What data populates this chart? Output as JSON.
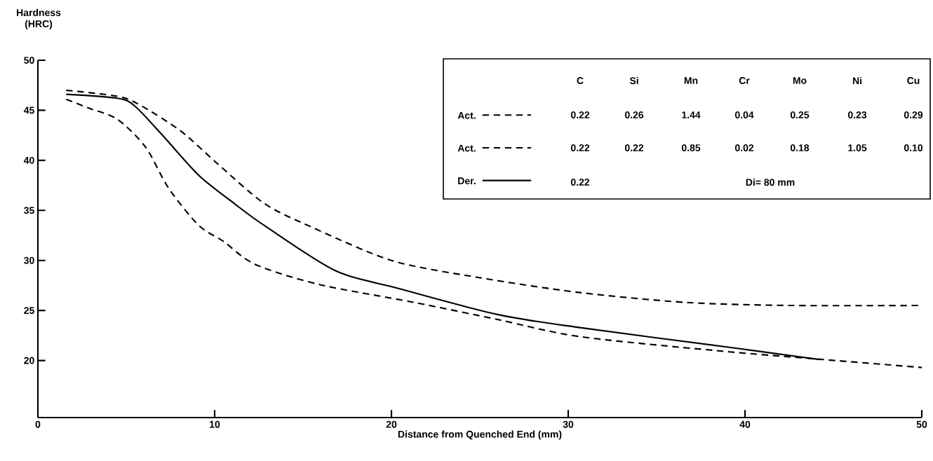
{
  "chart_data": {
    "type": "line",
    "xlabel": "Distance from Quenched End (mm)",
    "ylabel": "Hardness (HRC)",
    "xlim": [
      0,
      50
    ],
    "ylim": [
      14.3,
      50
    ],
    "xticks": [
      0,
      10,
      20,
      30,
      40,
      50
    ],
    "yticks": [
      20,
      25,
      30,
      35,
      40,
      45,
      50
    ],
    "legend": "top right",
    "series": [
      {
        "name": "Act.",
        "color": "#000000",
        "line_style": "dashed",
        "x": [
          1.6,
          4.5,
          5.8,
          8.1,
          10.2,
          12.8,
          15.4,
          20.0,
          24.9,
          30.6,
          36.7,
          42.6,
          50
        ],
        "values": [
          47.0,
          46.4,
          45.5,
          42.9,
          39.6,
          35.7,
          33.4,
          30.0,
          28.3,
          26.8,
          25.8,
          25.5,
          25.5
        ]
      },
      {
        "name": "Act.",
        "color": "#000000",
        "line_style": "dashed",
        "x": [
          1.6,
          2.9,
          4.5,
          6.1,
          7.4,
          9.1,
          10.5,
          12.3,
          15.9,
          21.3,
          26.0,
          30.6,
          38.3,
          44.4,
          50
        ],
        "values": [
          46.1,
          45.2,
          44.1,
          41.3,
          37.2,
          33.5,
          31.9,
          29.6,
          27.6,
          25.8,
          24.1,
          22.4,
          21.0,
          20.1,
          19.3
        ]
      },
      {
        "name": "Der.",
        "color": "#000000",
        "line_style": "solid",
        "x": [
          1.6,
          4.5,
          5.5,
          7.1,
          9.1,
          11.1,
          12.8,
          16.8,
          20.4,
          26.0,
          30.6,
          39.2,
          44.2
        ],
        "values": [
          46.6,
          46.2,
          45.4,
          42.4,
          38.5,
          35.7,
          33.5,
          29.0,
          27.2,
          24.6,
          23.3,
          21.3,
          20.1
        ]
      }
    ],
    "annotations": [
      "C",
      "Si",
      "Mn",
      "Cr",
      "Mo",
      "Ni",
      "Cu",
      "0.22",
      "0.26",
      "1.44",
      "0.04",
      "0.25",
      "0.23",
      "0.29",
      "0.22",
      "0.22",
      "0.85",
      "0.02",
      "0.18",
      "1.05",
      "0.10",
      "0.22",
      "Di= 80 mm"
    ]
  }
}
